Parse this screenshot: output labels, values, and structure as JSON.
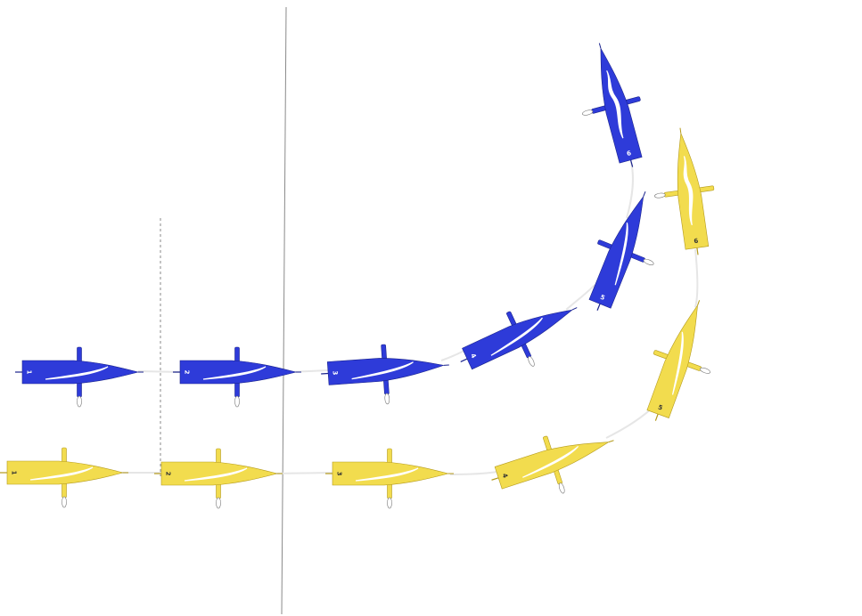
{
  "diagram": {
    "colors": {
      "blue_boat": "#2e3bd9",
      "blue_edge": "#1a238c",
      "yellow_boat": "#f2dc4e",
      "yellow_edge": "#b49a1c",
      "track": "#e6e6e6",
      "line": "#8a8a8a",
      "tiller": "#ffffff"
    },
    "fleets": [
      {
        "name": "blue",
        "boats": [
          {
            "label": "1"
          },
          {
            "label": "2"
          },
          {
            "label": "3"
          },
          {
            "label": "4"
          },
          {
            "label": "5"
          },
          {
            "label": "6"
          }
        ]
      },
      {
        "name": "yellow",
        "boats": [
          {
            "label": "1"
          },
          {
            "label": "2"
          },
          {
            "label": "3"
          },
          {
            "label": "4"
          },
          {
            "label": "5"
          },
          {
            "label": "6"
          }
        ]
      }
    ]
  }
}
